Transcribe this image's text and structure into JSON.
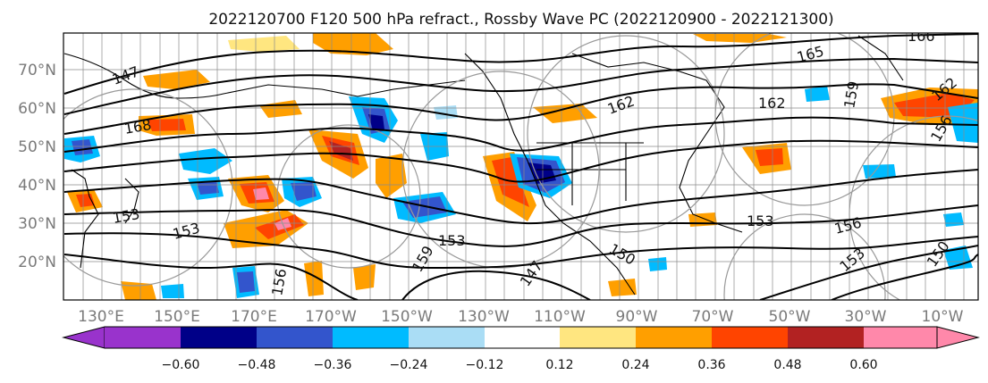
{
  "title": "2022120700 F120 500 hPa refract., Rossby Wave PC (2022120900 - 2022121300)",
  "lat_labels": [
    "70°N",
    "60°N",
    "50°N",
    "40°N",
    "30°N",
    "20°N"
  ],
  "lon_labels": [
    "130°E",
    "150°E",
    "170°E",
    "170°W",
    "150°W",
    "130°W",
    "110°W",
    "90°W",
    "70°W",
    "50°W",
    "30°W",
    "10°W"
  ],
  "colorbar": {
    "ticks": [
      "−0.60",
      "−0.48",
      "−0.36",
      "−0.24",
      "−0.12",
      "0.12",
      "0.24",
      "0.36",
      "0.48",
      "0.60"
    ],
    "colors": [
      "#9933cc",
      "#000088",
      "#3355cc",
      "#00bbff",
      "#aaddf5",
      "#ffffff",
      "#ffe680",
      "#ff9f00",
      "#ff4400",
      "#b22222",
      "#ff88aa"
    ]
  },
  "contour_labels": [
    "166",
    "165",
    "159",
    "162",
    "162",
    "162",
    "147",
    "168",
    "153",
    "156",
    "153",
    "150",
    "147",
    "153",
    "156",
    "153",
    "150",
    "159",
    "153",
    "156"
  ]
}
